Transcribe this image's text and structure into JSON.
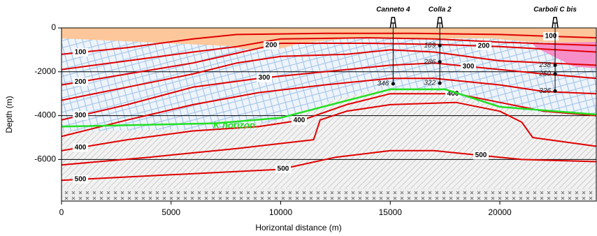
{
  "chart_data": {
    "type": "cross-section",
    "x_label": "Horizontal distance (m)",
    "y_label": "Depth (m)",
    "xlim": [
      0,
      24400
    ],
    "ylim": [
      -7900,
      0
    ],
    "xticks": [
      0,
      5000,
      10000,
      15000,
      20000
    ],
    "yticks": [
      0,
      -2000,
      -4000,
      -6000
    ],
    "grid": true,
    "isotherms": [
      {
        "level": 100,
        "color": "#e00000",
        "x": [
          0,
          3000,
          6000,
          8000,
          12000,
          16000,
          20000,
          22200,
          24400
        ],
        "y": [
          -1200,
          -900,
          -500,
          -300,
          -250,
          -250,
          -300,
          -380,
          -450
        ]
      },
      {
        "color": "#e00000",
        "x": [
          0,
          3000,
          6000,
          8000,
          10000,
          14000,
          17000,
          20000,
          24400
        ],
        "y": [
          -1900,
          -1500,
          -1100,
          -850,
          -500,
          -450,
          -500,
          -650,
          -800
        ]
      },
      {
        "level": 200,
        "color": "#e00000",
        "x": [
          0,
          3000,
          6000,
          8000,
          10000,
          14000,
          17000,
          20000,
          24400
        ],
        "y": [
          -2600,
          -2100,
          -1600,
          -1150,
          -700,
          -700,
          -750,
          -850,
          -1100
        ]
      },
      {
        "color": "#e00000",
        "x": [
          0,
          3000,
          6000,
          8000,
          10000,
          13000,
          15000,
          17000,
          20000,
          24400
        ],
        "y": [
          -3300,
          -2700,
          -2100,
          -1600,
          -1300,
          -1200,
          -1000,
          -1100,
          -1500,
          -1700
        ]
      },
      {
        "level": 300,
        "color": "#e00000",
        "x": [
          0,
          3000,
          6000,
          9000,
          12000,
          15000,
          17000,
          19000,
          22000,
          24400
        ],
        "y": [
          -4200,
          -3500,
          -2700,
          -2300,
          -2000,
          -1700,
          -1600,
          -1800,
          -2100,
          -2300
        ]
      },
      {
        "color": "#e00000",
        "x": [
          0,
          3000,
          6000,
          9000,
          12000,
          15000,
          17000,
          20000,
          22000,
          24400
        ],
        "y": [
          -4950,
          -4200,
          -3500,
          -2950,
          -2600,
          -2300,
          -2300,
          -2600,
          -2900,
          -3000
        ]
      },
      {
        "level": 400,
        "color": "#e00000",
        "x": [
          0,
          3000,
          6000,
          9000,
          11000,
          13000,
          15000,
          18000,
          20000,
          22000,
          24400
        ],
        "y": [
          -5600,
          -5100,
          -4700,
          -4500,
          -4200,
          -3500,
          -3000,
          -3000,
          -3400,
          -3800,
          -4000
        ]
      },
      {
        "color": "#e00000",
        "x": [
          0,
          4000,
          8000,
          11500,
          11800,
          13000,
          15000,
          18000,
          20000,
          21000,
          21500,
          24400
        ],
        "y": [
          -6250,
          -5900,
          -5500,
          -5100,
          -4200,
          -3800,
          -3500,
          -3400,
          -3800,
          -4300,
          -5000,
          -5400
        ]
      },
      {
        "level": 500,
        "color": "#e00000",
        "x": [
          0,
          5000,
          10000,
          12500,
          15000,
          17000,
          19000,
          21000,
          24400
        ],
        "y": [
          -6950,
          -6700,
          -6450,
          -5900,
          -5600,
          -5600,
          -5800,
          -6000,
          -6100
        ]
      }
    ],
    "k_horizon": {
      "name": "K horizon",
      "color": "#22e022",
      "x": [
        0,
        7000,
        10000,
        15000,
        17500,
        20000,
        24400
      ],
      "y": [
        -4500,
        -4350,
        -4100,
        -2800,
        -2800,
        -3600,
        -3950
      ]
    },
    "wells": [
      {
        "name": "Canneto 4",
        "x": 15130,
        "temperatures": [
          {
            "depth": -2550,
            "value": 346
          }
        ]
      },
      {
        "name": "Colla 2",
        "x": 17260,
        "temperatures": [
          {
            "depth": -800,
            "value": 169
          },
          {
            "depth": -1550,
            "value": 286
          },
          {
            "depth": -2520,
            "value": 322
          }
        ]
      },
      {
        "name": "Carboli C bis",
        "x": 22520,
        "temperatures": [
          {
            "depth": -1700,
            "value": 238
          },
          {
            "depth": -2100,
            "value": 250
          },
          {
            "depth": -2880,
            "value": 326
          }
        ]
      }
    ]
  }
}
